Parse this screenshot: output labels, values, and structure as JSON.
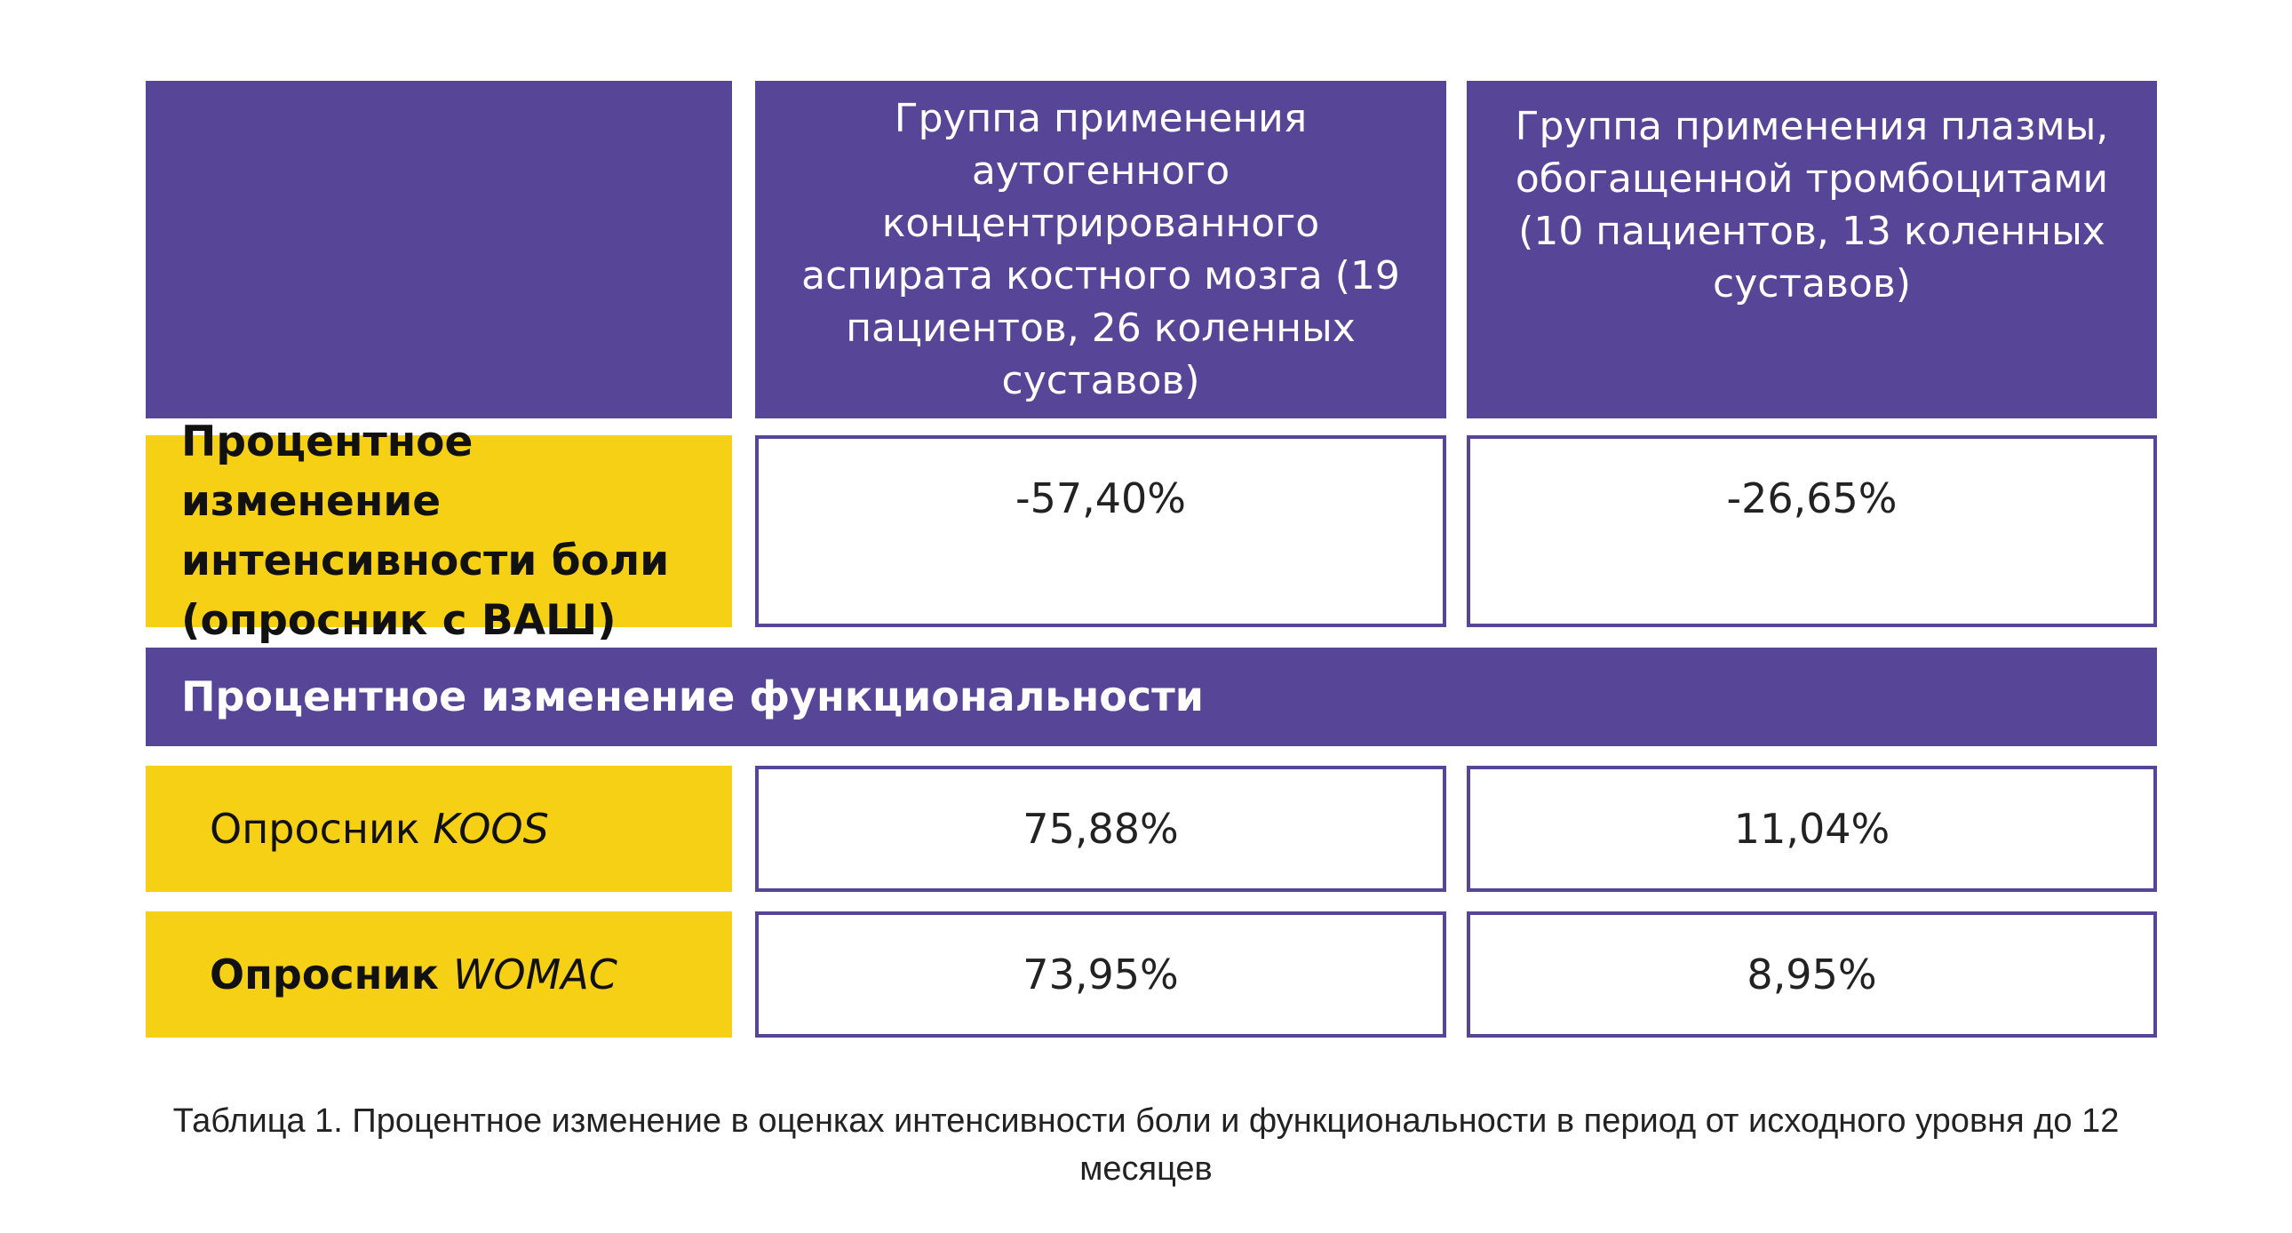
{
  "table": {
    "columns": [
      "Группа применения аутогенного концентрированного аспирата костного мозга (19 пациентов, 26 коленных суставов)",
      "Группа применения плазмы, обогащенной тромбоцитами (10 пациентов, 13 коленных суставов)"
    ],
    "rows": [
      {
        "label": "Процентное изменение интенсивности боли (опросник с ВАШ)",
        "values": [
          "-57,40%",
          "-26,65%"
        ]
      }
    ],
    "section": "Процентное изменение функциональности",
    "section_rows": [
      {
        "label": "Опросник",
        "label_italic": "KOOS",
        "values": [
          "75,88%",
          "11,04%"
        ]
      },
      {
        "label": "Опросник",
        "label_italic": "WOMAC",
        "values": [
          "73,95%",
          "8,95%"
        ]
      }
    ]
  },
  "caption": "Таблица 1. Процентное изменение в оценках интенсивности боли и функциональности в период от исходного уровня до 12 месяцев"
}
